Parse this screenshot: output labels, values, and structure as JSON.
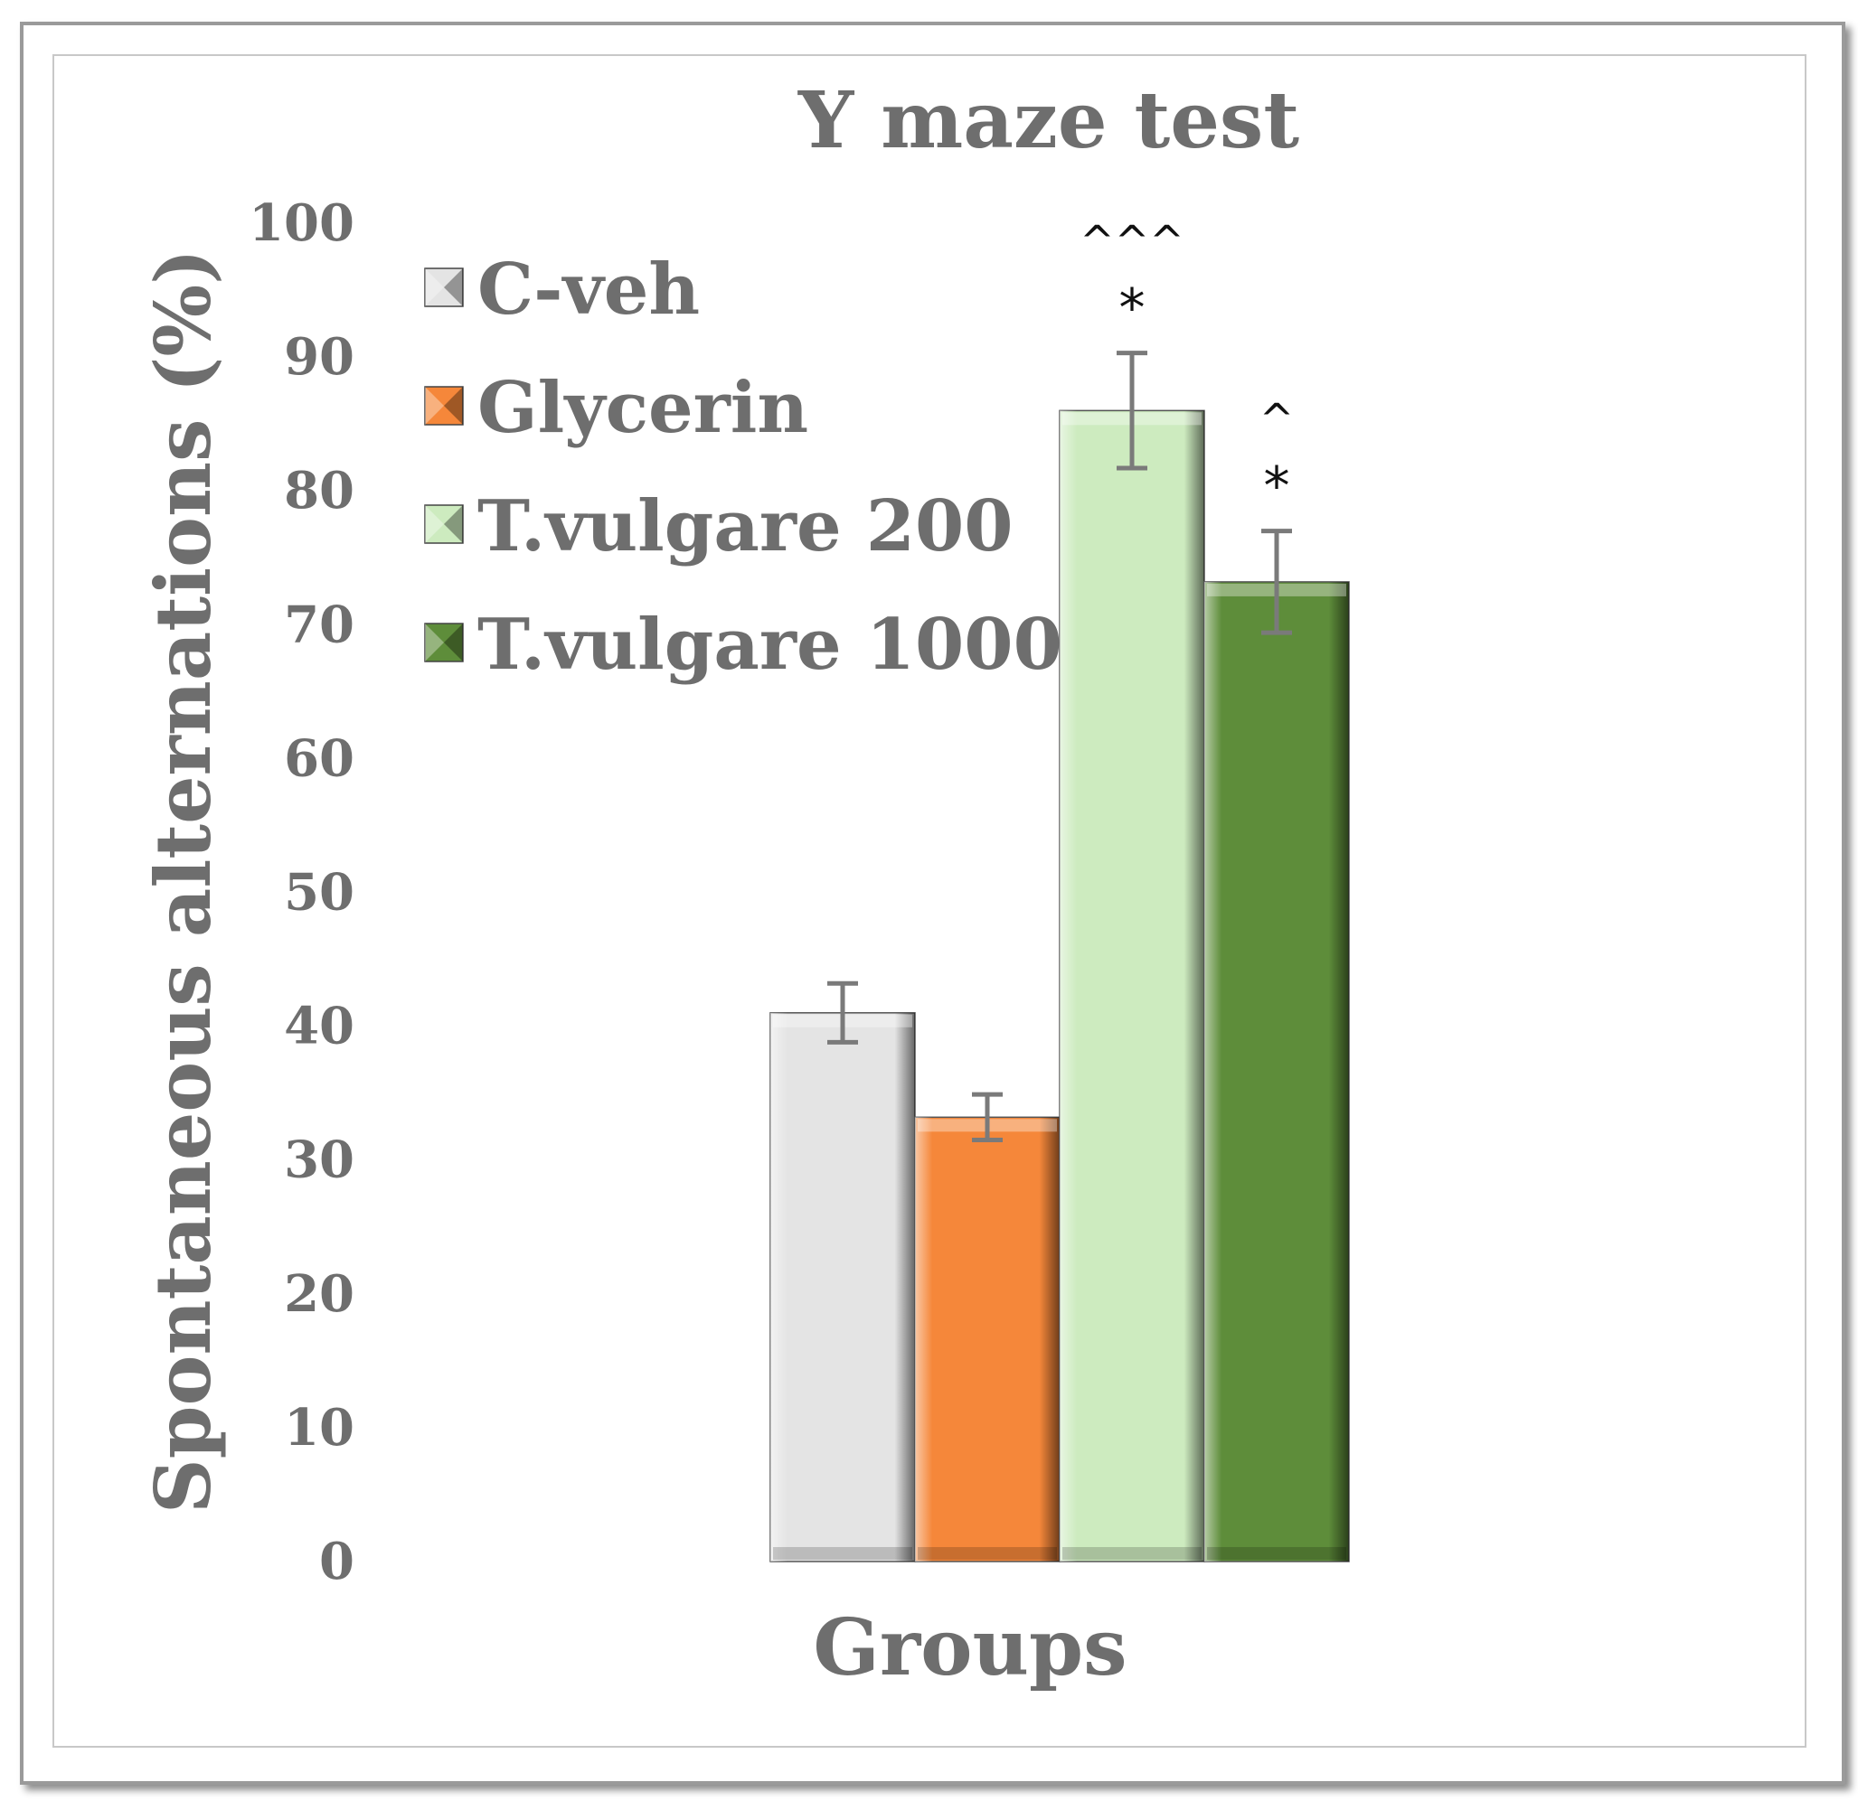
{
  "chart_data": {
    "type": "bar",
    "title": "Y maze test",
    "xlabel": "Groups",
    "ylabel": "Spontaneous alternations (%)",
    "ylim": [
      0,
      100
    ],
    "yticks": [
      0,
      10,
      20,
      30,
      40,
      50,
      60,
      70,
      80,
      90,
      100
    ],
    "grid": false,
    "legend_position": "top-left",
    "categories": [
      "Groups"
    ],
    "series": [
      {
        "name": "C-veh",
        "values": [
          41.0
        ],
        "error": [
          2.2
        ],
        "color": "#e4e4e4",
        "significance": [
          ""
        ]
      },
      {
        "name": "Glycerin",
        "values": [
          33.2
        ],
        "error": [
          1.7
        ],
        "color": "#f5873a",
        "significance": [
          ""
        ]
      },
      {
        "name": "T.vulgare 200",
        "values": [
          86.0
        ],
        "error": [
          4.3
        ],
        "color": "#cdebbf",
        "significance": [
          "^^^\n*"
        ]
      },
      {
        "name": "T.vulgare 1000",
        "values": [
          73.2
        ],
        "error": [
          3.8
        ],
        "color": "#5e8d3a",
        "significance": [
          "^\n*"
        ]
      }
    ]
  }
}
